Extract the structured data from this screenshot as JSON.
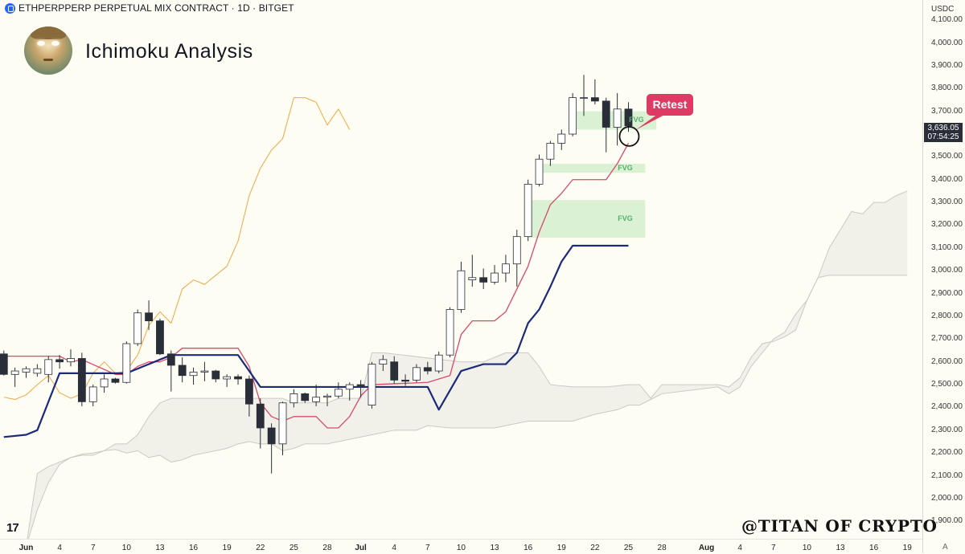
{
  "header": {
    "symbol_line": "ETHPERPPERP PERPETUAL MIX CONTRACT · 1D · BITGET"
  },
  "title": "Ichimoku Analysis",
  "watermark": "@TITAN OF CRYPTO",
  "tradingview_logo": "17",
  "currency": "USDC",
  "current_price": {
    "price": "3,636.05",
    "countdown": "07:54:25"
  },
  "annotation": {
    "retest_label": "Retest",
    "fvg_label": "FVG"
  },
  "corner_label": "A",
  "colors": {
    "background": "#fefdf3",
    "up_candle_fill": "#ffffff",
    "down_candle_fill": "#2a2e39",
    "kijun": "#1b2a7a",
    "tenkan": "#d8496a",
    "chikou": "#f0a745",
    "cloud": "#d9d9d6",
    "fvg": "#cdecc9",
    "retest": "#de3a64"
  },
  "icons": [
    "avatar-icon",
    "tradingview-logo-icon",
    "bitget-logo-icon",
    "retest-circle-icon"
  ],
  "chart_data": {
    "type": "candlestick",
    "title": "",
    "ylim": [
      1830,
      4150
    ],
    "y_ticks": [
      1900,
      2000,
      2100,
      2200,
      2300,
      2400,
      2500,
      2600,
      2700,
      2800,
      2900,
      3000,
      3100,
      3200,
      3300,
      3400,
      3500,
      3600,
      3700,
      3800,
      3900,
      4000,
      4100
    ],
    "y_tick_labels": [
      "1,900.00",
      "2,000.00",
      "2,100.00",
      "2,200.00",
      "2,300.00",
      "2,400.00",
      "2,500.00",
      "2,600.00",
      "2,700.00",
      "2,800.00",
      "2,900.00",
      "3,000.00",
      "3,100.00",
      "3,200.00",
      "3,300.00",
      "3,400.00",
      "3,500.00",
      "3,600.00",
      "3,700.00",
      "3,800.00",
      "3,900.00",
      "4,000.00",
      "4,100.00"
    ],
    "x_ticks": [
      {
        "day": 1,
        "label": "Jun",
        "bold": true
      },
      {
        "day": 4,
        "label": "4"
      },
      {
        "day": 7,
        "label": "7"
      },
      {
        "day": 10,
        "label": "10"
      },
      {
        "day": 13,
        "label": "13"
      },
      {
        "day": 16,
        "label": "16"
      },
      {
        "day": 19,
        "label": "19"
      },
      {
        "day": 22,
        "label": "22"
      },
      {
        "day": 25,
        "label": "25"
      },
      {
        "day": 28,
        "label": "28"
      },
      {
        "day": 31,
        "label": "Jul",
        "bold": true
      },
      {
        "day": 34,
        "label": "4"
      },
      {
        "day": 37,
        "label": "7"
      },
      {
        "day": 40,
        "label": "10"
      },
      {
        "day": 43,
        "label": "13"
      },
      {
        "day": 46,
        "label": "16"
      },
      {
        "day": 49,
        "label": "19"
      },
      {
        "day": 52,
        "label": "22"
      },
      {
        "day": 55,
        "label": "25"
      },
      {
        "day": 58,
        "label": "28"
      },
      {
        "day": 62,
        "label": "Aug",
        "bold": true
      },
      {
        "day": 65,
        "label": "4"
      },
      {
        "day": 68,
        "label": "7"
      },
      {
        "day": 71,
        "label": "10"
      },
      {
        "day": 74,
        "label": "13"
      },
      {
        "day": 77,
        "label": "16"
      },
      {
        "day": 80,
        "label": "19"
      }
    ],
    "candles": [
      {
        "day": -1,
        "o": 2635,
        "h": 2650,
        "l": 2540,
        "c": 2545
      },
      {
        "day": 0,
        "o": 2545,
        "h": 2575,
        "l": 2490,
        "c": 2560
      },
      {
        "day": 1,
        "o": 2555,
        "h": 2580,
        "l": 2530,
        "c": 2570
      },
      {
        "day": 2,
        "o": 2550,
        "h": 2590,
        "l": 2535,
        "c": 2570
      },
      {
        "day": 3,
        "o": 2545,
        "h": 2625,
        "l": 2510,
        "c": 2610
      },
      {
        "day": 4,
        "o": 2610,
        "h": 2630,
        "l": 2570,
        "c": 2600
      },
      {
        "day": 5,
        "o": 2600,
        "h": 2655,
        "l": 2580,
        "c": 2615
      },
      {
        "day": 6,
        "o": 2615,
        "h": 2640,
        "l": 2405,
        "c": 2425
      },
      {
        "day": 7,
        "o": 2425,
        "h": 2500,
        "l": 2405,
        "c": 2490
      },
      {
        "day": 8,
        "o": 2490,
        "h": 2545,
        "l": 2465,
        "c": 2525
      },
      {
        "day": 9,
        "o": 2525,
        "h": 2530,
        "l": 2505,
        "c": 2510
      },
      {
        "day": 10,
        "o": 2510,
        "h": 2690,
        "l": 2505,
        "c": 2680
      },
      {
        "day": 11,
        "o": 2680,
        "h": 2830,
        "l": 2670,
        "c": 2815
      },
      {
        "day": 12,
        "o": 2815,
        "h": 2870,
        "l": 2740,
        "c": 2780
      },
      {
        "day": 13,
        "o": 2780,
        "h": 2790,
        "l": 2630,
        "c": 2635
      },
      {
        "day": 14,
        "o": 2635,
        "h": 2650,
        "l": 2470,
        "c": 2585
      },
      {
        "day": 15,
        "o": 2585,
        "h": 2620,
        "l": 2510,
        "c": 2540
      },
      {
        "day": 16,
        "o": 2540,
        "h": 2575,
        "l": 2500,
        "c": 2555
      },
      {
        "day": 17,
        "o": 2555,
        "h": 2600,
        "l": 2515,
        "c": 2560
      },
      {
        "day": 18,
        "o": 2560,
        "h": 2565,
        "l": 2510,
        "c": 2525
      },
      {
        "day": 19,
        "o": 2525,
        "h": 2545,
        "l": 2490,
        "c": 2535
      },
      {
        "day": 20,
        "o": 2535,
        "h": 2545,
        "l": 2500,
        "c": 2525
      },
      {
        "day": 21,
        "o": 2525,
        "h": 2540,
        "l": 2360,
        "c": 2415
      },
      {
        "day": 22,
        "o": 2415,
        "h": 2440,
        "l": 2220,
        "c": 2310
      },
      {
        "day": 23,
        "o": 2310,
        "h": 2330,
        "l": 2110,
        "c": 2240
      },
      {
        "day": 24,
        "o": 2240,
        "h": 2425,
        "l": 2190,
        "c": 2420
      },
      {
        "day": 25,
        "o": 2420,
        "h": 2480,
        "l": 2400,
        "c": 2460
      },
      {
        "day": 26,
        "o": 2460,
        "h": 2465,
        "l": 2420,
        "c": 2430
      },
      {
        "day": 27,
        "o": 2425,
        "h": 2500,
        "l": 2405,
        "c": 2445
      },
      {
        "day": 28,
        "o": 2445,
        "h": 2460,
        "l": 2405,
        "c": 2450
      },
      {
        "day": 29,
        "o": 2450,
        "h": 2510,
        "l": 2440,
        "c": 2480
      },
      {
        "day": 30,
        "o": 2480,
        "h": 2510,
        "l": 2430,
        "c": 2500
      },
      {
        "day": 31,
        "o": 2500,
        "h": 2520,
        "l": 2445,
        "c": 2495
      },
      {
        "day": 32,
        "o": 2410,
        "h": 2600,
        "l": 2395,
        "c": 2590
      },
      {
        "day": 33,
        "o": 2590,
        "h": 2630,
        "l": 2560,
        "c": 2610
      },
      {
        "day": 34,
        "o": 2600,
        "h": 2625,
        "l": 2505,
        "c": 2520
      },
      {
        "day": 35,
        "o": 2520,
        "h": 2545,
        "l": 2495,
        "c": 2515
      },
      {
        "day": 36,
        "o": 2520,
        "h": 2590,
        "l": 2510,
        "c": 2575
      },
      {
        "day": 37,
        "o": 2575,
        "h": 2600,
        "l": 2545,
        "c": 2560
      },
      {
        "day": 38,
        "o": 2560,
        "h": 2645,
        "l": 2550,
        "c": 2630
      },
      {
        "day": 39,
        "o": 2630,
        "h": 2840,
        "l": 2620,
        "c": 2830
      },
      {
        "day": 40,
        "o": 2830,
        "h": 3040,
        "l": 2815,
        "c": 3000
      },
      {
        "day": 41,
        "o": 2960,
        "h": 3070,
        "l": 2930,
        "c": 2970
      },
      {
        "day": 42,
        "o": 2970,
        "h": 3010,
        "l": 2920,
        "c": 2950
      },
      {
        "day": 43,
        "o": 2950,
        "h": 3025,
        "l": 2940,
        "c": 2990
      },
      {
        "day": 44,
        "o": 2990,
        "h": 3070,
        "l": 2950,
        "c": 3030
      },
      {
        "day": 45,
        "o": 3030,
        "h": 3180,
        "l": 2930,
        "c": 3150
      },
      {
        "day": 46,
        "o": 3150,
        "h": 3400,
        "l": 3130,
        "c": 3380
      },
      {
        "day": 47,
        "o": 3380,
        "h": 3510,
        "l": 3370,
        "c": 3490
      },
      {
        "day": 48,
        "o": 3490,
        "h": 3570,
        "l": 3460,
        "c": 3560
      },
      {
        "day": 49,
        "o": 3560,
        "h": 3620,
        "l": 3530,
        "c": 3600
      },
      {
        "day": 50,
        "o": 3600,
        "h": 3780,
        "l": 3590,
        "c": 3760
      },
      {
        "day": 51,
        "o": 3760,
        "h": 3860,
        "l": 3680,
        "c": 3760
      },
      {
        "day": 52,
        "o": 3760,
        "h": 3840,
        "l": 3730,
        "c": 3745
      },
      {
        "day": 53,
        "o": 3745,
        "h": 3760,
        "l": 3520,
        "c": 3630
      },
      {
        "day": 54,
        "o": 3630,
        "h": 3780,
        "l": 3550,
        "c": 3710
      },
      {
        "day": 55,
        "o": 3710,
        "h": 3740,
        "l": 3610,
        "c": 3636
      }
    ],
    "kijun": [
      [
        -1,
        2270
      ],
      [
        1,
        2280
      ],
      [
        2,
        2300
      ],
      [
        4,
        2550
      ],
      [
        10,
        2550
      ],
      [
        14,
        2630
      ],
      [
        20,
        2630
      ],
      [
        22,
        2490
      ],
      [
        37,
        2490
      ],
      [
        38,
        2390
      ],
      [
        40,
        2560
      ],
      [
        42,
        2590
      ],
      [
        44,
        2590
      ],
      [
        45,
        2640
      ],
      [
        46,
        2770
      ],
      [
        47,
        2830
      ],
      [
        48,
        2930
      ],
      [
        49,
        3040
      ],
      [
        50,
        3110
      ],
      [
        55,
        3110
      ]
    ],
    "tenkan": [
      [
        -1,
        2625
      ],
      [
        4,
        2625
      ],
      [
        5,
        2600
      ],
      [
        6,
        2610
      ],
      [
        9,
        2545
      ],
      [
        10,
        2545
      ],
      [
        11,
        2580
      ],
      [
        12,
        2600
      ],
      [
        13,
        2600
      ],
      [
        14,
        2620
      ],
      [
        15,
        2660
      ],
      [
        20,
        2660
      ],
      [
        21,
        2580
      ],
      [
        22,
        2420
      ],
      [
        23,
        2360
      ],
      [
        24,
        2340
      ],
      [
        25,
        2360
      ],
      [
        27,
        2360
      ],
      [
        28,
        2310
      ],
      [
        29,
        2310
      ],
      [
        30,
        2360
      ],
      [
        31,
        2450
      ],
      [
        32,
        2500
      ],
      [
        37,
        2510
      ],
      [
        39,
        2540
      ],
      [
        40,
        2720
      ],
      [
        41,
        2780
      ],
      [
        43,
        2780
      ],
      [
        44,
        2820
      ],
      [
        45,
        2920
      ],
      [
        46,
        3020
      ],
      [
        47,
        3170
      ],
      [
        48,
        3290
      ],
      [
        49,
        3340
      ],
      [
        50,
        3400
      ],
      [
        51,
        3400
      ],
      [
        53,
        3400
      ],
      [
        54,
        3470
      ],
      [
        55,
        3560
      ]
    ],
    "chikou": [
      [
        -1,
        2445
      ],
      [
        0,
        2435
      ],
      [
        1,
        2455
      ],
      [
        2,
        2500
      ],
      [
        3,
        2540
      ],
      [
        4,
        2465
      ],
      [
        5,
        2440
      ],
      [
        6,
        2460
      ],
      [
        7,
        2550
      ],
      [
        8,
        2600
      ],
      [
        9,
        2550
      ],
      [
        10,
        2560
      ],
      [
        11,
        2630
      ],
      [
        12,
        2760
      ],
      [
        13,
        2820
      ],
      [
        14,
        2770
      ],
      [
        15,
        2920
      ],
      [
        16,
        2960
      ],
      [
        17,
        2940
      ],
      [
        18,
        2980
      ],
      [
        19,
        3020
      ],
      [
        20,
        3130
      ],
      [
        21,
        3330
      ],
      [
        22,
        3450
      ],
      [
        23,
        3530
      ],
      [
        24,
        3580
      ],
      [
        25,
        3760
      ],
      [
        26,
        3760
      ],
      [
        27,
        3740
      ],
      [
        28,
        3640
      ],
      [
        29,
        3710
      ],
      [
        30,
        3620
      ]
    ],
    "cloud_upper": [
      [
        1,
        1790
      ],
      [
        2,
        1950
      ],
      [
        3,
        2070
      ],
      [
        4,
        2150
      ],
      [
        5,
        2180
      ],
      [
        6,
        2190
      ],
      [
        7,
        2190
      ],
      [
        8,
        2210
      ],
      [
        9,
        2240
      ],
      [
        10,
        2240
      ],
      [
        11,
        2280
      ],
      [
        12,
        2360
      ],
      [
        13,
        2420
      ],
      [
        14,
        2440
      ],
      [
        15,
        2440
      ],
      [
        24,
        2440
      ],
      [
        25,
        2420
      ],
      [
        28,
        2420
      ],
      [
        29,
        2440
      ],
      [
        31,
        2440
      ],
      [
        32,
        2640
      ],
      [
        33,
        2640
      ],
      [
        40,
        2600
      ],
      [
        42,
        2600
      ],
      [
        44,
        2640
      ],
      [
        46,
        2640
      ],
      [
        47,
        2580
      ],
      [
        48,
        2500
      ],
      [
        50,
        2490
      ],
      [
        53,
        2490
      ],
      [
        55,
        2500
      ],
      [
        56,
        2500
      ],
      [
        57,
        2440
      ],
      [
        58,
        2500
      ],
      [
        63,
        2500
      ],
      [
        64,
        2490
      ],
      [
        65,
        2530
      ],
      [
        66,
        2620
      ],
      [
        67,
        2680
      ],
      [
        68,
        2690
      ],
      [
        69,
        2710
      ],
      [
        70,
        2740
      ],
      [
        71,
        2870
      ],
      [
        72,
        2970
      ],
      [
        73,
        3100
      ],
      [
        74,
        3180
      ],
      [
        75,
        3260
      ],
      [
        76,
        3250
      ],
      [
        77,
        3300
      ],
      [
        78,
        3300
      ],
      [
        79,
        3330
      ],
      [
        80,
        3350
      ]
    ],
    "cloud_lower": [
      [
        1,
        1790
      ],
      [
        2,
        2110
      ],
      [
        3,
        2140
      ],
      [
        4,
        2160
      ],
      [
        5,
        2180
      ],
      [
        6,
        2195
      ],
      [
        7,
        2200
      ],
      [
        8,
        2210
      ],
      [
        9,
        2215
      ],
      [
        10,
        2200
      ],
      [
        11,
        2210
      ],
      [
        12,
        2180
      ],
      [
        13,
        2190
      ],
      [
        14,
        2160
      ],
      [
        15,
        2170
      ],
      [
        16,
        2190
      ],
      [
        17,
        2200
      ],
      [
        18,
        2210
      ],
      [
        19,
        2220
      ],
      [
        20,
        2240
      ],
      [
        21,
        2250
      ],
      [
        22,
        2240
      ],
      [
        23,
        2240
      ],
      [
        24,
        2210
      ],
      [
        25,
        2220
      ],
      [
        26,
        2240
      ],
      [
        28,
        2240
      ],
      [
        30,
        2260
      ],
      [
        32,
        2280
      ],
      [
        34,
        2300
      ],
      [
        36,
        2300
      ],
      [
        37,
        2320
      ],
      [
        39,
        2310
      ],
      [
        43,
        2310
      ],
      [
        46,
        2340
      ],
      [
        50,
        2340
      ],
      [
        52,
        2370
      ],
      [
        54,
        2390
      ],
      [
        55,
        2410
      ],
      [
        56,
        2410
      ],
      [
        58,
        2460
      ],
      [
        63,
        2490
      ],
      [
        64,
        2460
      ],
      [
        65,
        2490
      ],
      [
        66,
        2580
      ],
      [
        67,
        2640
      ],
      [
        68,
        2700
      ],
      [
        69,
        2730
      ],
      [
        70,
        2810
      ],
      [
        71,
        2870
      ],
      [
        72,
        2970
      ],
      [
        73,
        2980
      ],
      [
        80,
        2980
      ]
    ],
    "fvg_zones": [
      {
        "x0": 50,
        "x1": 57.5,
        "y0": 3620,
        "y1": 3700,
        "label": "FVG"
      },
      {
        "x0": 47,
        "x1": 56.5,
        "y0": 3430,
        "y1": 3470,
        "label": "FVG"
      },
      {
        "x0": 46,
        "x1": 56.5,
        "y0": 3145,
        "y1": 3310,
        "label": "FVG"
      }
    ],
    "retest_point": {
      "day": 55,
      "price": 3590
    }
  }
}
